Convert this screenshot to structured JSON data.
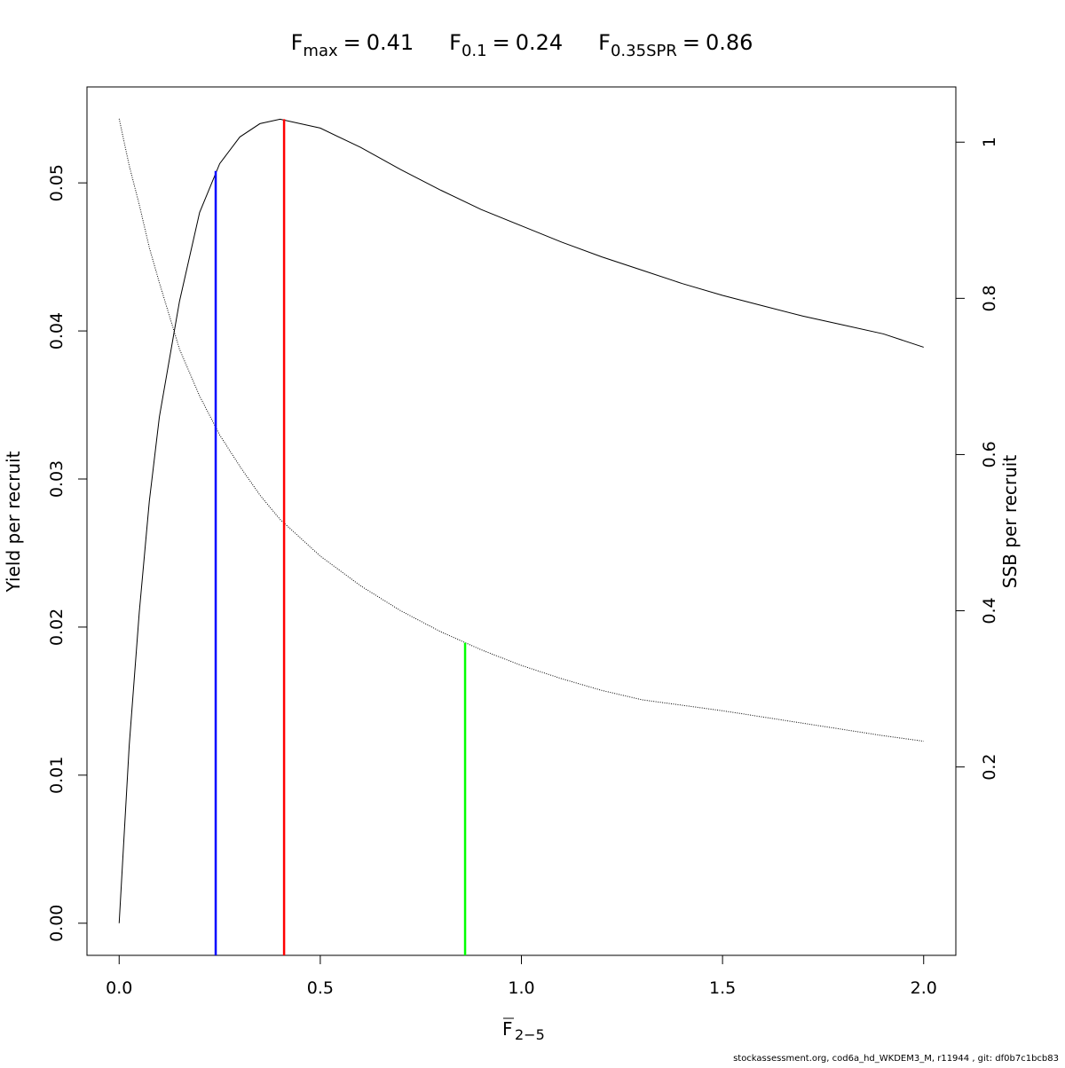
{
  "chart_data": {
    "type": "line",
    "reference_lines": [
      {
        "symbol": "F",
        "subscript": "max",
        "relation": "=",
        "value": 0.41,
        "color": "#ff0000",
        "top": 0.0543
      },
      {
        "symbol": "F",
        "subscript": "0.1",
        "relation": "=",
        "value": 0.24,
        "color": "#0000ff",
        "top": 0.0508
      },
      {
        "symbol": "F",
        "subscript": "0.35SPR",
        "relation": "=",
        "value": 0.86,
        "color": "#00ff00",
        "top": 0.359,
        "axis": "y2"
      }
    ],
    "xlabel": {
      "text": "F",
      "subscript": "2−5"
    },
    "ylabel": "Yield per recruit",
    "y2label": "SSB per recruit",
    "footer": "stockassessment.org, cod6a_hd_WKDEM3_M, r11944 , git: df0b7c1bcb83",
    "x": [
      0,
      0.025,
      0.05,
      0.075,
      0.1,
      0.15,
      0.2,
      0.25,
      0.3,
      0.35,
      0.4,
      0.5,
      0.6,
      0.7,
      0.8,
      0.9,
      1.0,
      1.1,
      1.2,
      1.3,
      1.4,
      1.5,
      1.6,
      1.7,
      1.8,
      1.9,
      2.0
    ],
    "series": [
      {
        "color": "#000000",
        "line_style": "solid",
        "values": [
          0,
          0.012,
          0.021,
          0.0285,
          0.0342,
          0.042,
          0.048,
          0.0513,
          0.0531,
          0.054,
          0.0543,
          0.0537,
          0.0524,
          0.0509,
          0.0495,
          0.0482,
          0.0471,
          0.046,
          0.045,
          0.0441,
          0.0432,
          0.0424,
          0.0417,
          0.041,
          0.0404,
          0.0398,
          0.0389
        ]
      },
      {
        "color": "#000000",
        "line_style": "dotted",
        "axis": "y2",
        "values": [
          1.03,
          0.97,
          0.92,
          0.865,
          0.82,
          0.735,
          0.675,
          0.625,
          0.585,
          0.548,
          0.517,
          0.47,
          0.432,
          0.4,
          0.373,
          0.35,
          0.33,
          0.313,
          0.298,
          0.286,
          0.279,
          0.272,
          0.264,
          0.256,
          0.248,
          0.24,
          0.233
        ]
      }
    ],
    "xlim": [
      -0.08,
      2.08
    ],
    "ylim": [
      -0.00217,
      0.05648
    ],
    "y2lim": [
      -0.0412,
      1.0707
    ],
    "xticks": [
      {
        "value": 0,
        "label": "0.0"
      },
      0.5,
      {
        "value": 1,
        "label": "1.0"
      },
      1.5,
      {
        "value": 2,
        "label": "2.0"
      }
    ],
    "yticks": [
      {
        "value": 0,
        "label": "0.00"
      },
      0.01,
      0.02,
      0.03,
      0.04,
      0.05
    ],
    "y2ticks": [
      0.2,
      0.4,
      0.6,
      0.8,
      1
    ]
  }
}
